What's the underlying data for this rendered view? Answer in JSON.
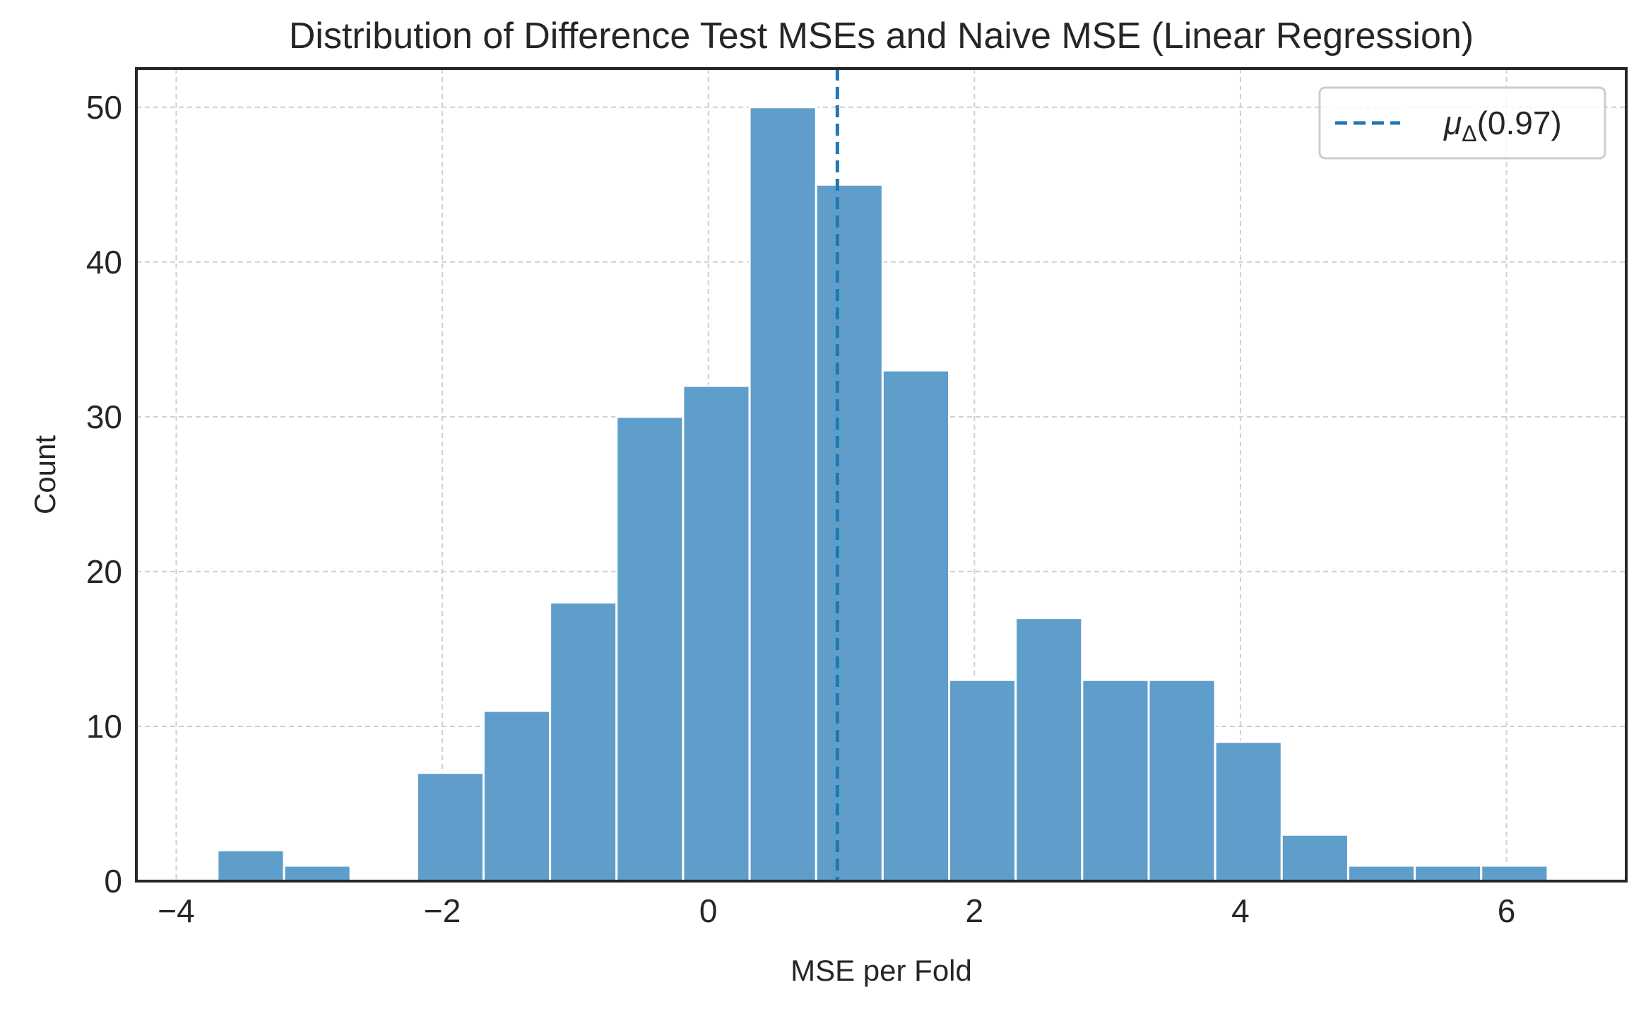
{
  "chart_data": {
    "type": "bar",
    "title": "Distribution of Difference Test MSEs and Naive MSE (Linear Regression)",
    "xlabel": "MSE per Fold",
    "ylabel": "Count",
    "xlim": [
      -4.3,
      6.9
    ],
    "ylim": [
      0,
      52.5
    ],
    "xticks": [
      -4,
      -2,
      0,
      2,
      4,
      6
    ],
    "xtick_labels": [
      "−4",
      "−2",
      "0",
      "2",
      "4",
      "6"
    ],
    "yticks": [
      0,
      10,
      20,
      30,
      40,
      50
    ],
    "ytick_labels": [
      "0",
      "10",
      "20",
      "30",
      "40",
      "50"
    ],
    "grid": true,
    "bin_edges": [
      -3.69,
      -3.19,
      -2.69,
      -2.19,
      -1.69,
      -1.19,
      -0.69,
      -0.19,
      0.31,
      0.81,
      1.31,
      1.81,
      2.31,
      2.81,
      3.31,
      3.81,
      4.31,
      4.81,
      5.31,
      5.81,
      6.31
    ],
    "counts": [
      2,
      1,
      0,
      7,
      11,
      18,
      30,
      32,
      50,
      45,
      33,
      13,
      17,
      13,
      13,
      9,
      3,
      1,
      1,
      1
    ],
    "bar_color": "#5f9ecb",
    "mean_line": {
      "x": 0.97,
      "color": "#1f77b4",
      "style": "dashed"
    },
    "legend": {
      "placement": "top-right",
      "entries": [
        {
          "label_symbol": "μ",
          "label_subscript": "Δ",
          "label_value": "(0.97)"
        }
      ]
    }
  }
}
